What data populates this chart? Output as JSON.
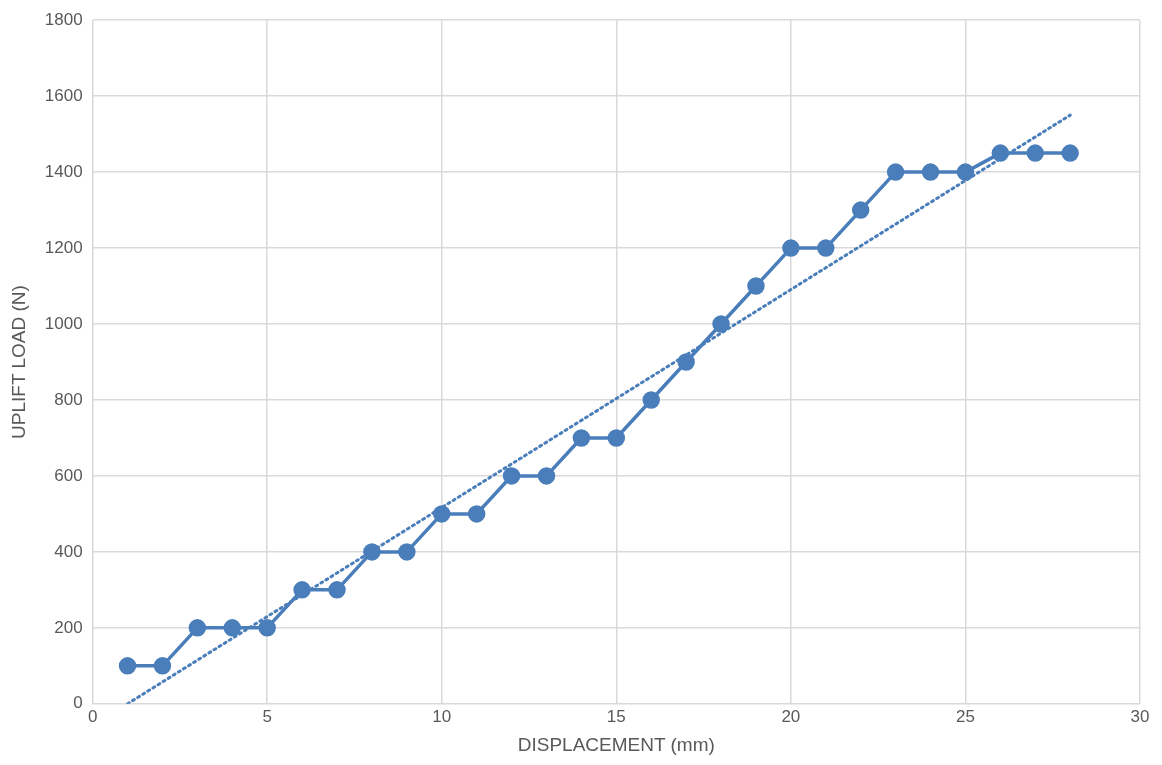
{
  "chart_data": {
    "type": "line",
    "xlabel": "DISPLACEMENT (mm)",
    "ylabel": "UPLIFT LOAD (N)",
    "xlim": [
      0,
      30
    ],
    "xticks": [
      0,
      5,
      10,
      15,
      20,
      25,
      30
    ],
    "ylim": [
      0,
      1800
    ],
    "yticks": [
      0,
      200,
      400,
      600,
      800,
      1000,
      1200,
      1400,
      1600,
      1800
    ],
    "grid": true,
    "legend": false,
    "marker": "circle",
    "line_style": "solid",
    "series": [
      {
        "color": "#4a7ebb",
        "x": [
          1,
          2,
          3,
          4,
          5,
          6,
          7,
          8,
          9,
          10,
          11,
          12,
          13,
          14,
          15,
          16,
          17,
          18,
          19,
          20,
          21,
          22,
          23,
          24,
          25,
          26,
          27,
          28
        ],
        "values": [
          100,
          100,
          200,
          200,
          200,
          300,
          300,
          400,
          400,
          500,
          500,
          600,
          600,
          700,
          700,
          800,
          900,
          1000,
          1100,
          1200,
          1200,
          1300,
          1400,
          1400,
          1400,
          1450,
          1450,
          1450
        ]
      },
      {
        "type": "line",
        "color": "#4a7ebb",
        "marker": "none",
        "line_style": "dotted",
        "x": [
          1,
          28
        ],
        "values": [
          0,
          1550
        ]
      }
    ]
  }
}
